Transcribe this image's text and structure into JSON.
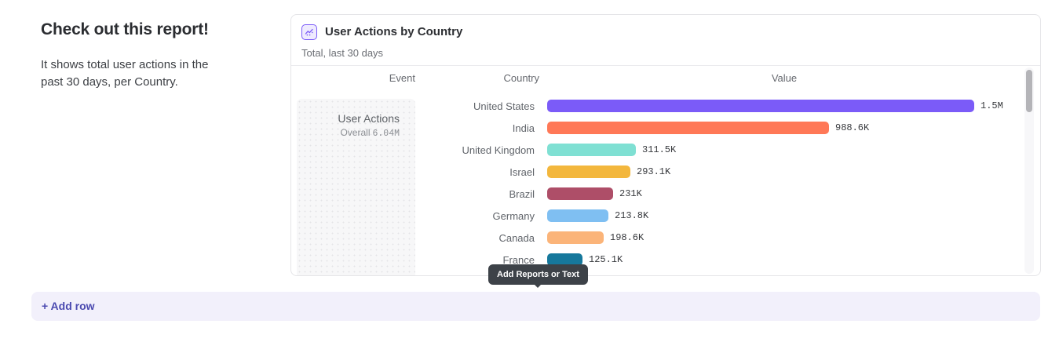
{
  "intro": {
    "title": "Check out this report!",
    "description": "It shows total user actions in the past 30 days, per Country."
  },
  "report_card": {
    "title": "User Actions by Country",
    "subtitle": "Total, last 30 days",
    "columns": {
      "event": "Event",
      "country": "Country",
      "value": "Value"
    },
    "event_panel": {
      "name": "User Actions",
      "overall_label": "Overall",
      "overall_value": "6.04M"
    }
  },
  "chart_data": {
    "type": "bar",
    "orientation": "horizontal",
    "title": "User Actions by Country",
    "subtitle": "Total, last 30 days",
    "event": "User Actions",
    "overall_total": "6.04M",
    "categories": [
      "United States",
      "India",
      "United Kingdom",
      "Israel",
      "Brazil",
      "Germany",
      "Canada",
      "France"
    ],
    "values": [
      1500000,
      988600,
      311500,
      293100,
      231000,
      213800,
      198600,
      125100
    ],
    "value_labels": [
      "1.5M",
      "988.6K",
      "311.5K",
      "293.1K",
      "231K",
      "213.8K",
      "198.6K",
      "125.1K"
    ],
    "colors": [
      "#7b5bf8",
      "#ff7857",
      "#7fe0d3",
      "#f3b73d",
      "#ae4e68",
      "#7fbff2",
      "#fbb479",
      "#16789c"
    ],
    "xlim": [
      0,
      1500000
    ],
    "legend": false,
    "grid": false
  },
  "tooltip": {
    "text": "Add Reports or Text"
  },
  "add_row": {
    "label": "+ Add row"
  },
  "theme": {
    "accent_purple": "#7b5bf8",
    "add_row_bg": "#f2f0fb",
    "add_row_text": "#4b4ab0",
    "tooltip_bg": "#3d4248",
    "card_border": "#e5e5e8"
  }
}
